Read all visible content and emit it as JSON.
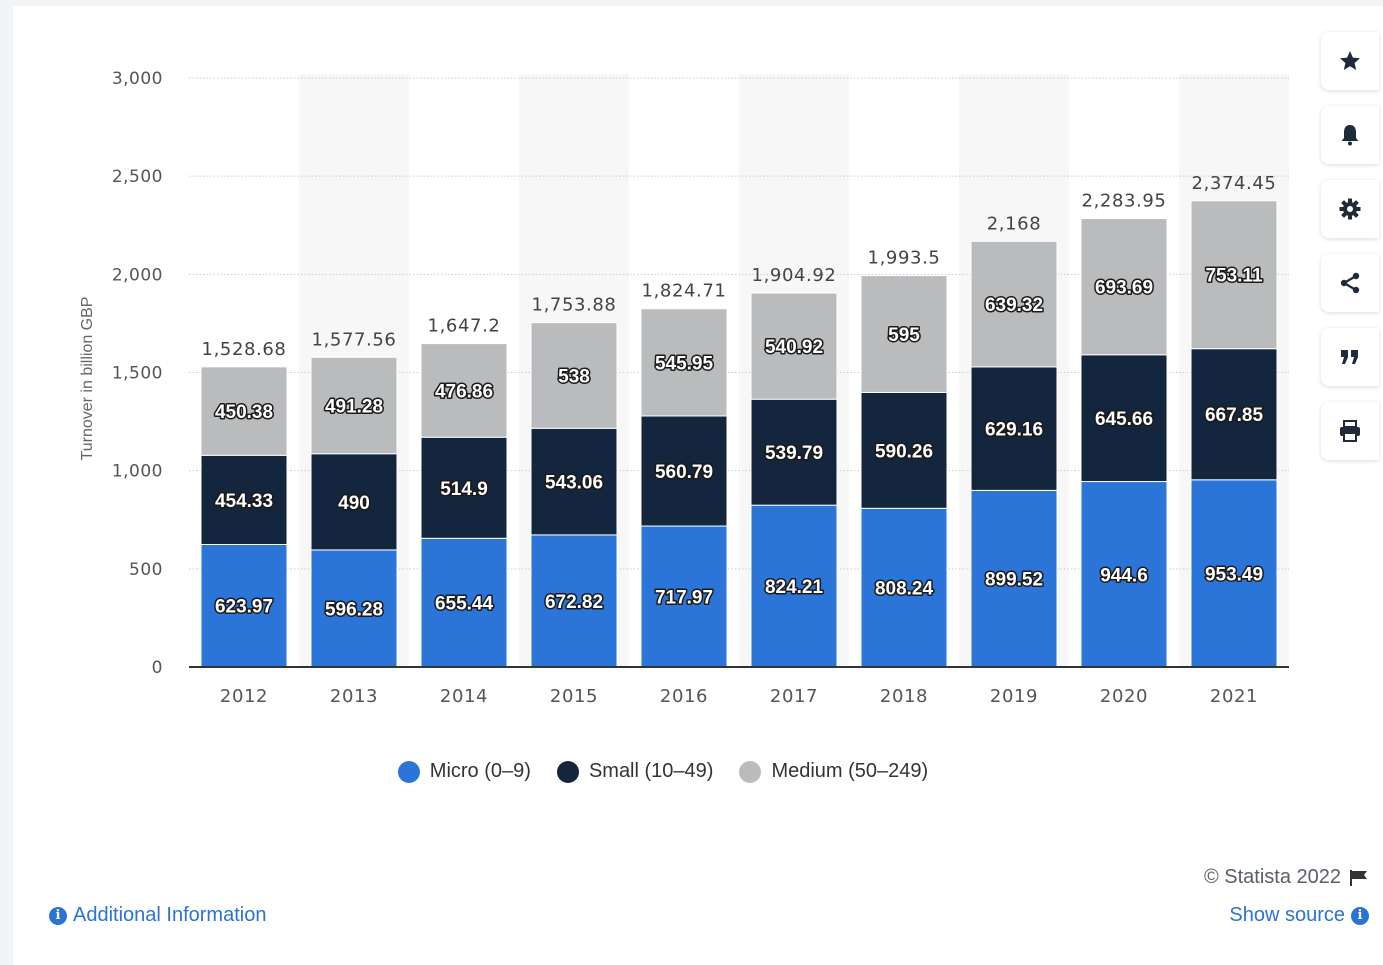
{
  "chart_data": {
    "type": "bar",
    "stacked": true,
    "categories": [
      "2012",
      "2013",
      "2014",
      "2015",
      "2016",
      "2017",
      "2018",
      "2019",
      "2020",
      "2021"
    ],
    "series": [
      {
        "name": "Micro (0-9)",
        "color": "#2b75d9",
        "values": [
          623.97,
          596.28,
          655.44,
          672.82,
          717.97,
          824.21,
          808.24,
          899.52,
          944.6,
          953.49
        ]
      },
      {
        "name": "Small (10-49)",
        "color": "#14253e",
        "values": [
          454.33,
          490,
          514.9,
          543.06,
          560.79,
          539.79,
          590.26,
          629.16,
          645.66,
          667.85
        ]
      },
      {
        "name": "Medium (50-249)",
        "color": "#b9bbbd",
        "values": [
          450.38,
          491.28,
          476.86,
          538,
          545.95,
          540.92,
          595,
          639.32,
          693.69,
          753.11
        ]
      }
    ],
    "segment_labels": [
      [
        "623.97",
        "596.28",
        "655.44",
        "672.82",
        "717.97",
        "824.21",
        "808.24",
        "899.52",
        "944.6",
        "953.49"
      ],
      [
        "454.33",
        "490",
        "514.9",
        "543.06",
        "560.79",
        "539.79",
        "590.26",
        "629.16",
        "645.66",
        "667.85"
      ],
      [
        "450.38",
        "491.28",
        "476.86",
        "538",
        "545.95",
        "540.92",
        "595",
        "639.32",
        "693.69",
        "753.11"
      ]
    ],
    "totals": [
      1528.68,
      1577.56,
      1647.2,
      1753.88,
      1824.71,
      1904.92,
      1993.5,
      2168,
      2283.95,
      2374.45
    ],
    "total_labels": [
      "1,528.68",
      "1,577.56",
      "1,647.2",
      "1,753.88",
      "1,824.71",
      "1,904.92",
      "1,993.5",
      "2,168",
      "2,283.95",
      "2,374.45"
    ],
    "ylabel": "Turnover in billion GBP",
    "xlabel": "",
    "ylim": [
      0,
      3000
    ],
    "yticks": [
      0,
      500,
      1000,
      1500,
      2000,
      2500,
      3000
    ],
    "ytick_labels": [
      "0",
      "500",
      "1,000",
      "1,500",
      "2,000",
      "2,500",
      "3,000"
    ],
    "grid": true,
    "legend_position": "bottom"
  },
  "legend": {
    "items": [
      {
        "label": "Micro (0–9)",
        "color": "#2b75d9"
      },
      {
        "label": "Small (10–49)",
        "color": "#14253e"
      },
      {
        "label": "Medium (50–249)",
        "color": "#b9bbbd"
      }
    ]
  },
  "toolbar": {
    "icons": [
      "star-icon",
      "bell-icon",
      "gear-icon",
      "share-icon",
      "quote-icon",
      "print-icon"
    ]
  },
  "footer": {
    "copyright": "© Statista 2022",
    "additional_info": "Additional Information",
    "show_source": "Show source"
  },
  "colors": {
    "accent": "#2b72d6",
    "band": "#f7f7f8"
  }
}
